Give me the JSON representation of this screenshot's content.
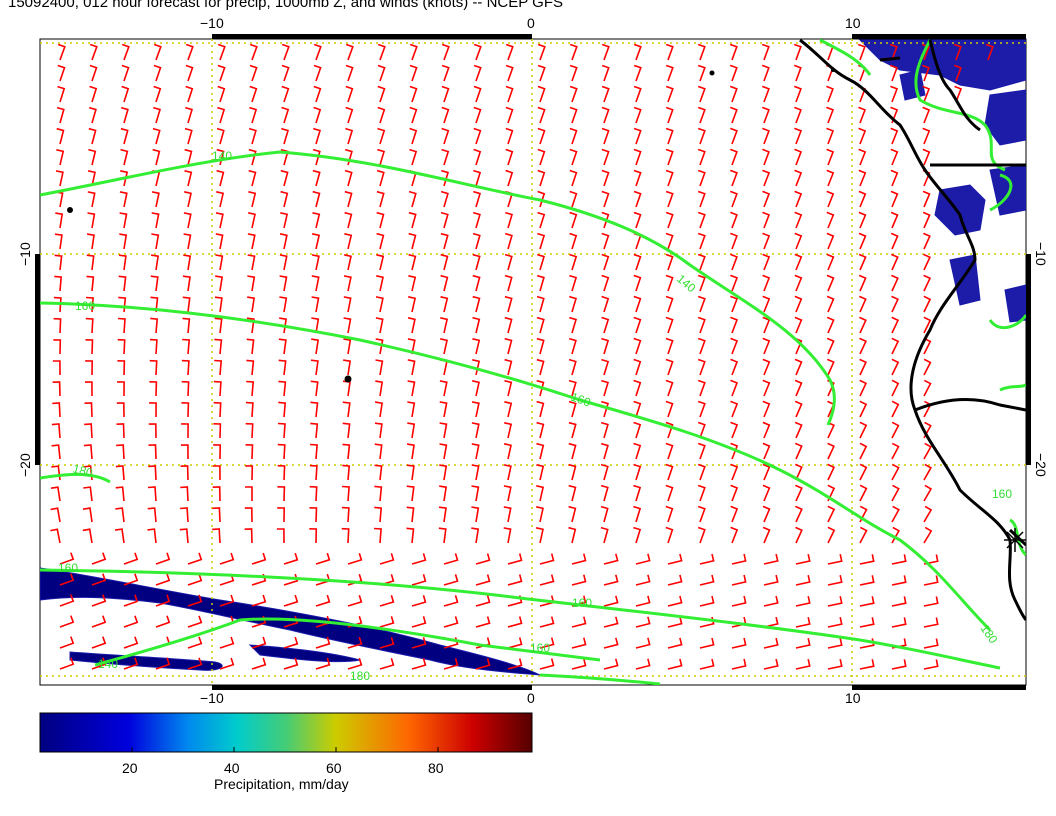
{
  "title": "15092400, 012 hour forecast for precip, 1000mb Z, and winds (knots) -- NCEP GFS",
  "colors": {
    "wind_barbs": "#ff0000",
    "height_contours": "#33ee33",
    "precip_fill": "#000080",
    "coastline": "#000000",
    "grid": "#cccc00"
  },
  "axes": {
    "top_labels": [
      "−10",
      "0",
      "10"
    ],
    "bottom_labels": [
      "−10",
      "0",
      "10"
    ],
    "left_labels": [
      "−10",
      "−20"
    ],
    "right_labels": [
      "−10",
      "−20"
    ]
  },
  "contour_labels": [
    "140",
    "160",
    "140",
    "160",
    "180",
    "160",
    "160",
    "160",
    "140",
    "180",
    "160",
    "180"
  ],
  "colorbar": {
    "label": "Precipitation, mm/day",
    "ticks": [
      "20",
      "40",
      "60",
      "80"
    ]
  }
}
